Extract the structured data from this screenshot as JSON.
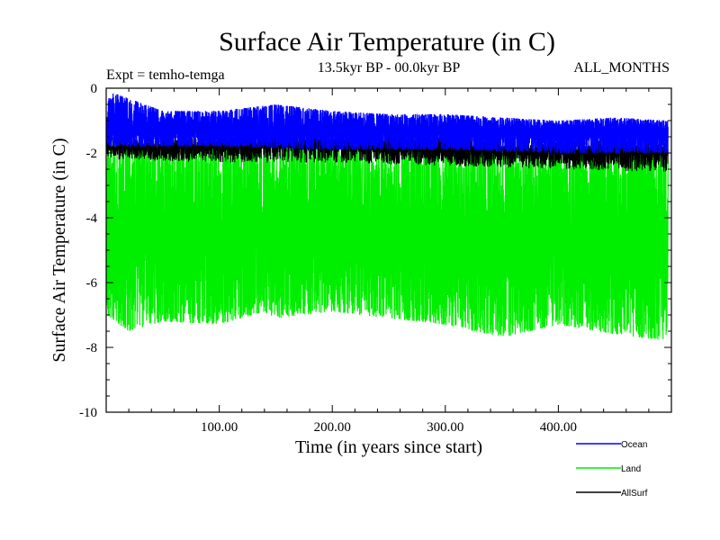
{
  "chart_data": {
    "type": "line",
    "title": "Surface Air Temperature (in C)",
    "subtitle": "13.5kyr BP - 00.0kyr BP",
    "experiment": "Expt = temho-temga",
    "months": "ALL_MONTHS",
    "xlabel": "Time (in years since start)",
    "ylabel": "Surface Air Temperature (in C)",
    "xlim": [
      0,
      500
    ],
    "ylim": [
      -10,
      0
    ],
    "x_ticks": [
      100,
      200,
      300,
      400
    ],
    "x_tick_labels": [
      "100.00",
      "200.00",
      "300.00",
      "400.00"
    ],
    "y_ticks": [
      0,
      -2,
      -4,
      -6,
      -8,
      -10
    ],
    "y_tick_labels": [
      "0",
      "-2",
      "-4",
      "-6",
      "-8",
      "-10"
    ],
    "series": [
      {
        "name": "Land",
        "color": "#00ee00",
        "style": "noisy-band",
        "mean": -4.6,
        "high_envelope_x": [
          0,
          10,
          50,
          100,
          140,
          150,
          200,
          250,
          300,
          350,
          400,
          450,
          497
        ],
        "high_envelope": [
          -1.5,
          -1.6,
          -1.8,
          -1.8,
          -1.5,
          -1.7,
          -1.6,
          -1.8,
          -1.7,
          -2.0,
          -1.9,
          -1.8,
          -2.2
        ],
        "low_envelope_x": [
          0,
          20,
          50,
          100,
          140,
          150,
          200,
          250,
          300,
          350,
          400,
          450,
          497
        ],
        "low_envelope": [
          -7.0,
          -7.5,
          -7.2,
          -7.3,
          -6.9,
          -7.1,
          -6.9,
          -7.1,
          -7.3,
          -7.7,
          -7.3,
          -7.6,
          -7.8
        ]
      },
      {
        "name": "AllSurf",
        "color": "#000000",
        "style": "upper-edge",
        "mean": -1.75,
        "high_envelope_x": [
          0,
          100,
          150,
          200,
          300,
          400,
          497
        ],
        "high_envelope": [
          -1.5,
          -1.5,
          -1.3,
          -1.4,
          -1.5,
          -1.6,
          -1.6
        ],
        "low_envelope_x": [
          0,
          100,
          200,
          300,
          400,
          497
        ],
        "low_envelope": [
          -2.2,
          -2.3,
          -2.3,
          -2.4,
          -2.5,
          -2.6
        ]
      },
      {
        "name": "Ocean",
        "color": "#0000ff",
        "style": "noisy-band",
        "mean": -1.3,
        "high_envelope_x": [
          0,
          3,
          50,
          100,
          150,
          200,
          250,
          300,
          350,
          400,
          450,
          497
        ],
        "high_envelope": [
          -0.8,
          -0.1,
          -0.7,
          -0.7,
          -0.5,
          -0.7,
          -0.8,
          -0.8,
          -0.9,
          -1.0,
          -0.9,
          -1.0
        ],
        "low_envelope_x": [
          0,
          100,
          200,
          300,
          400,
          497
        ],
        "low_envelope": [
          -1.8,
          -1.8,
          -1.9,
          -1.9,
          -2.0,
          -2.0
        ]
      }
    ],
    "legend": [
      {
        "name": "Ocean",
        "color": "#0000ff"
      },
      {
        "name": "Land",
        "color": "#00ee00"
      },
      {
        "name": "AllSurf",
        "color": "#000000"
      }
    ],
    "legend_position": "bottom-right",
    "grid": false
  }
}
